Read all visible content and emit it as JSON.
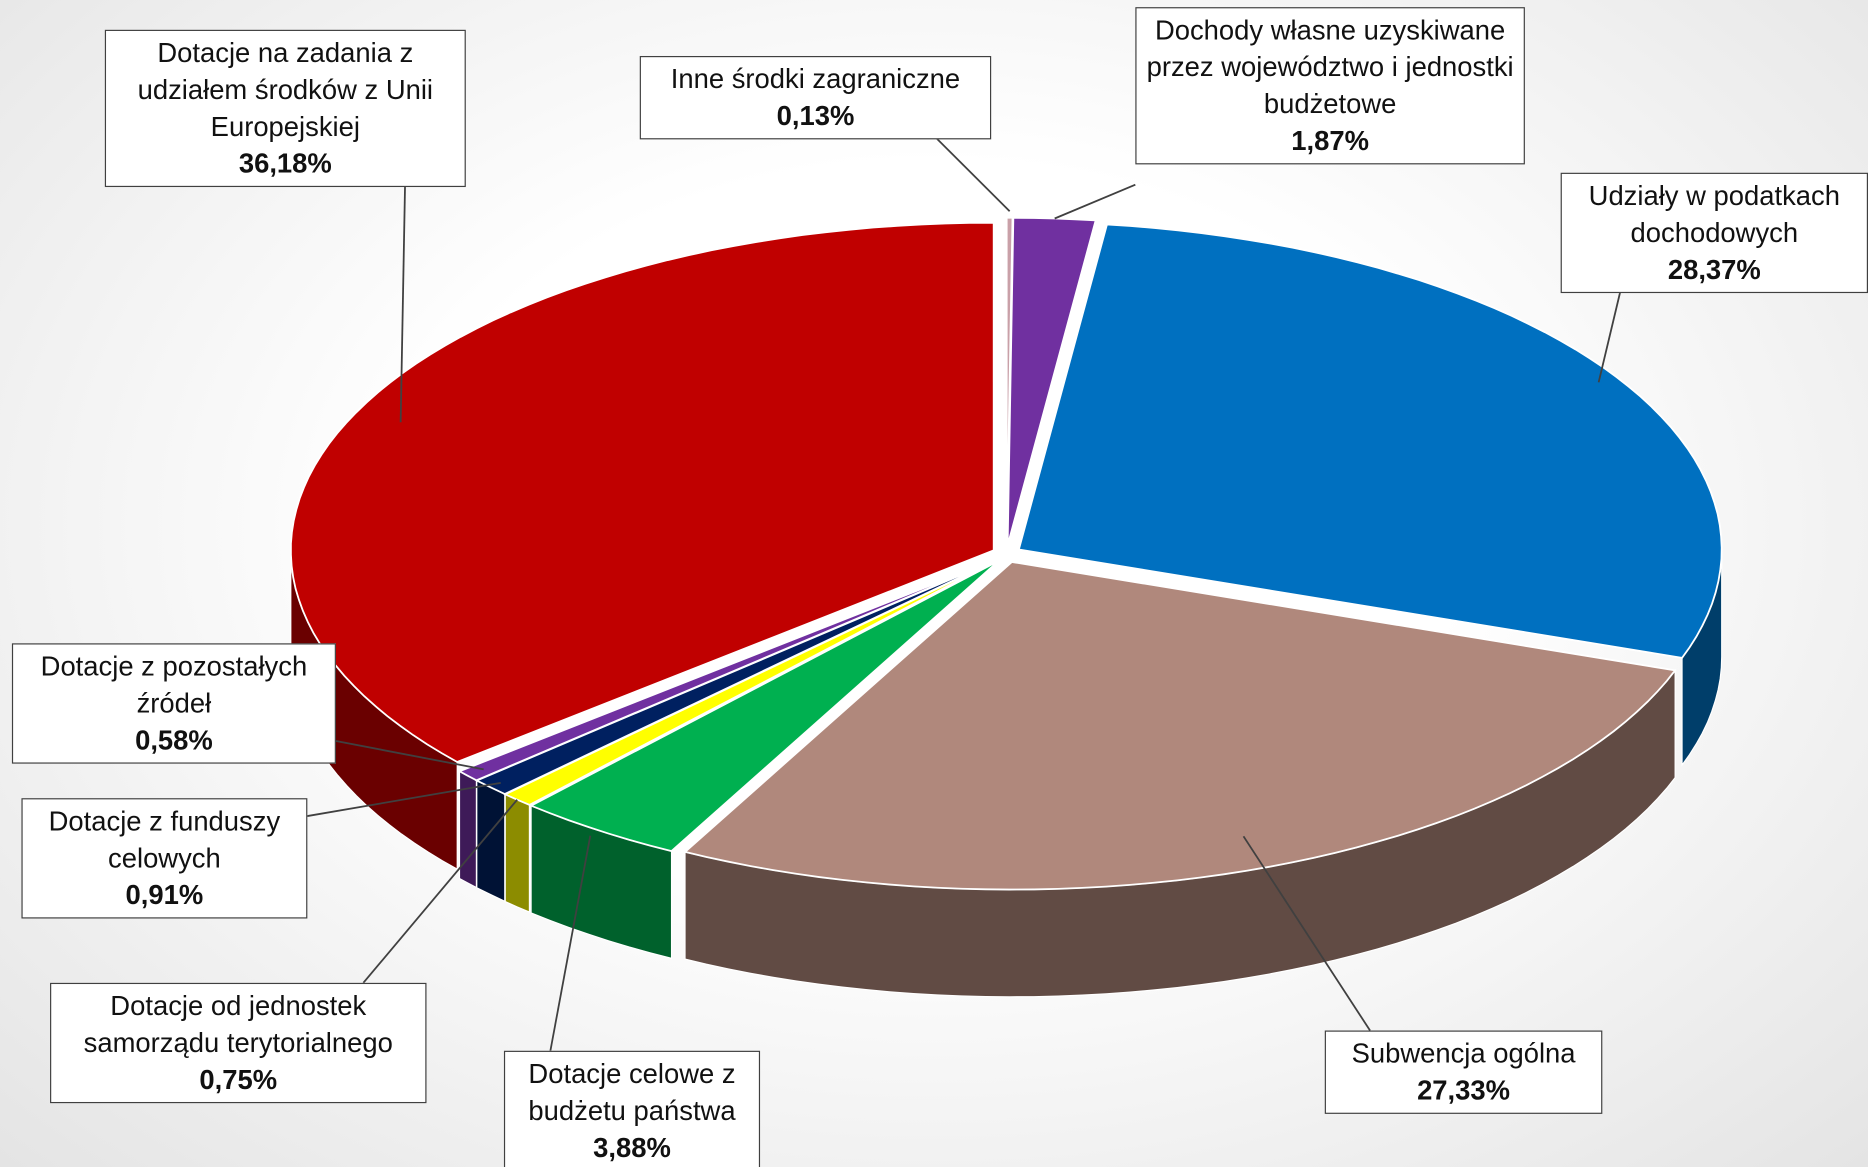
{
  "chart_data": {
    "type": "pie",
    "categories": [
      "Inne środki zagraniczne",
      "Dochody własne uzyskiwane przez województwo i jednostki budżetowe",
      "Udziały w podatkach dochodowych",
      "Subwencja ogólna",
      "Dotacje celowe z budżetu państwa",
      "Dotacje od jednostek samorządu terytorialnego",
      "Dotacje z funduszy celowych",
      "Dotacje z pozostałych źródeł",
      "Dotacje na zadania z udziałem środków z Unii Europejskiej"
    ],
    "values": [
      0.13,
      1.87,
      28.37,
      27.33,
      3.88,
      0.75,
      0.91,
      0.58,
      36.18
    ],
    "value_labels": [
      "0,13%",
      "1,87%",
      "28,37%",
      "27,33%",
      "3,88%",
      "0,75%",
      "0,91%",
      "0,58%",
      "36,18%"
    ],
    "colors": [
      "#c9a0a8",
      "#7030a0",
      "#0070c0",
      "#b0887c",
      "#00b050",
      "#ffff00",
      "#002060",
      "#7030a0",
      "#c00000"
    ]
  }
}
